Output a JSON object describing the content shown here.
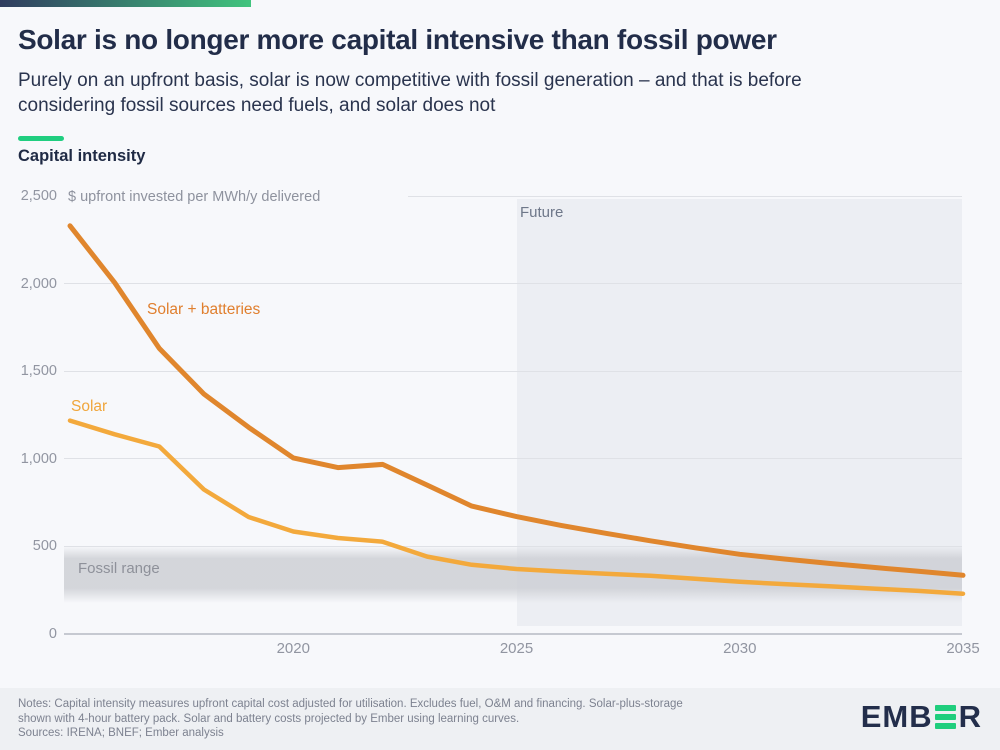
{
  "header": {
    "title": "Solar is no longer more capital intensive than fossil power",
    "subtitle_lines": [
      "Purely on an upfront basis, solar is now competitive with fossil generation – and that is before",
      "considering fossil sources need fuels, and solar does not"
    ]
  },
  "chart_data": {
    "type": "line",
    "title": "Capital intensity",
    "ylabel": "$ upfront invested per MWh/y delivered",
    "xlabel": "",
    "x": [
      2015,
      2016,
      2017,
      2018,
      2019,
      2020,
      2021,
      2022,
      2023,
      2024,
      2025,
      2026,
      2027,
      2028,
      2029,
      2030,
      2031,
      2032,
      2033,
      2034,
      2035
    ],
    "series": [
      {
        "name": "Solar + batteries",
        "color": "#E0862D",
        "values": [
          2330,
          2005,
          1630,
          1370,
          1180,
          1005,
          950,
          968,
          850,
          730,
          670,
          620,
          575,
          532,
          492,
          455,
          428,
          403,
          380,
          358,
          335
        ]
      },
      {
        "name": "Solar",
        "color": "#F3A93C",
        "values": [
          1218,
          1140,
          1070,
          825,
          668,
          585,
          548,
          527,
          442,
          395,
          371,
          357,
          344,
          332,
          315,
          298,
          285,
          272,
          259,
          246,
          230
        ]
      }
    ],
    "ylim": [
      0,
      2500
    ],
    "xlim": [
      2015,
      2035
    ],
    "yticks": [
      "0",
      "500",
      "1,000",
      "1,500",
      "2,000",
      "2,500"
    ],
    "xticks": [
      2020,
      2025,
      2030,
      2035
    ],
    "grid": true,
    "legend": "inline-labels",
    "future_region": {
      "label": "Future",
      "from_year": 2025,
      "to_year": 2035
    },
    "fossil_range": {
      "label": "Fossil range",
      "low": 230,
      "high": 470
    }
  },
  "footer": {
    "notes_lines": [
      "Notes: Capital intensity measures upfront capital cost adjusted for utilisation. Excludes fuel, O&M and financing. Solar-plus-storage",
      "shown with 4-hour battery pack. Solar and battery costs projected by Ember using learning curves."
    ],
    "sources": "Sources: IRENA; BNEF; Ember analysis",
    "logo": {
      "left": "EMB",
      "right": "R"
    }
  },
  "colors": {
    "brand_navy": "#232E4B",
    "brand_green": "#1FCE7D",
    "solar_batteries_line": "#E0862D",
    "solar_line": "#F3A93C",
    "background": "#F7F8FB",
    "future_band": "#ECEEF3",
    "fossil_band": "#CED0D5",
    "gridline": "#DFE1E6"
  }
}
